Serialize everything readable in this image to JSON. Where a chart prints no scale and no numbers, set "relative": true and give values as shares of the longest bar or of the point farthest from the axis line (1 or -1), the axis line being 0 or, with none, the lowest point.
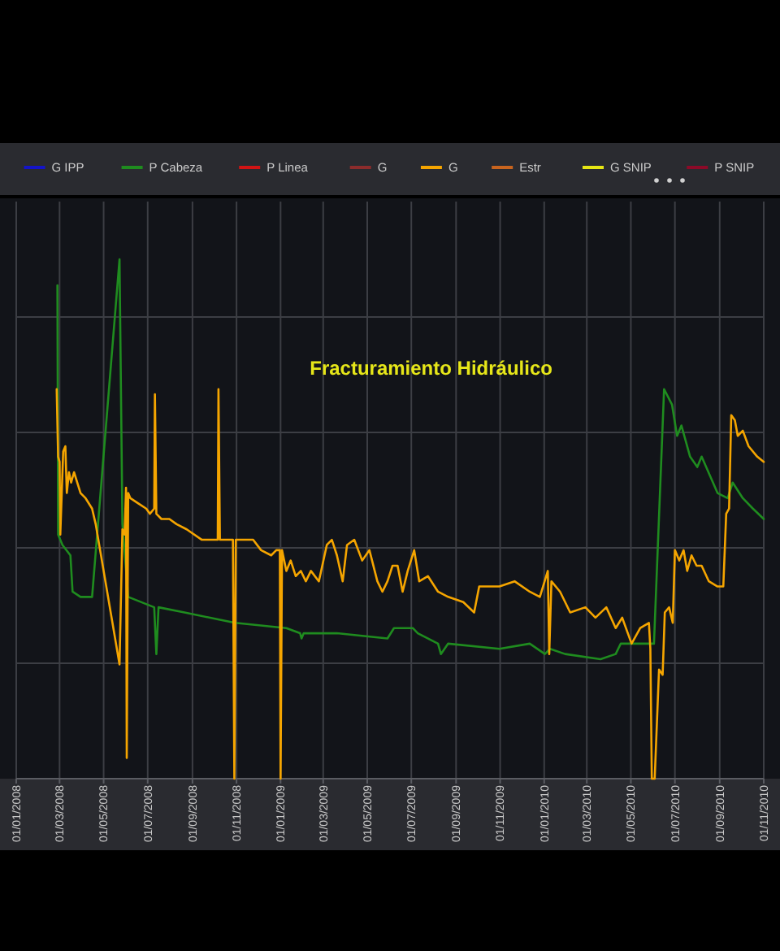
{
  "chart_data": {
    "type": "line",
    "relative": true,
    "grid": true,
    "legend": "top",
    "annotations": [
      "Fracturamiento Hidráulico"
    ],
    "xlim": [
      "2008-01-01",
      "2010-11-01"
    ],
    "xticks": [
      {
        "value": "2008-01-01",
        "label": "01/01/2008"
      },
      {
        "value": "2008-03-01",
        "label": "01/03/2008"
      },
      {
        "value": "2008-05-01",
        "label": "01/05/2008"
      },
      {
        "value": "2008-07-01",
        "label": "01/07/2008"
      },
      {
        "value": "2008-09-01",
        "label": "01/09/2008"
      },
      {
        "value": "2008-11-01",
        "label": "01/11/2008"
      },
      {
        "value": "2009-01-01",
        "label": "01/01/2009"
      },
      {
        "value": "2009-03-01",
        "label": "01/03/2009"
      },
      {
        "value": "2009-05-01",
        "label": "01/05/2009"
      },
      {
        "value": "2009-07-01",
        "label": "01/07/2009"
      },
      {
        "value": "2009-09-01",
        "label": "01/09/2009"
      },
      {
        "value": "2009-11-01",
        "label": "01/11/2009"
      },
      {
        "value": "2010-01-01",
        "label": "01/01/2010"
      },
      {
        "value": "2010-03-01",
        "label": "01/03/2010"
      },
      {
        "value": "2010-05-01",
        "label": "01/05/2010"
      },
      {
        "value": "2010-07-01",
        "label": "01/07/2010"
      },
      {
        "value": "2010-09-01",
        "label": "01/09/2010"
      },
      {
        "value": "2010-11-01",
        "label": "01/11/2010"
      }
    ],
    "series": [
      {
        "name": "G IPP",
        "color": "#1414c8"
      },
      {
        "name": "P Cabeza",
        "color": "#1f8c1f",
        "x": [
          "2008-02-27",
          "2008-02-28",
          "2008-03-05",
          "2008-03-16",
          "2008-03-19",
          "2008-03-30",
          "2008-04-15",
          "2008-05-23",
          "2008-05-27",
          "2008-06-04",
          "2008-07-10",
          "2008-07-13",
          "2008-07-16",
          "2008-08-21",
          "2008-10-30",
          "2009-01-09",
          "2009-01-28",
          "2009-01-30",
          "2009-02-02",
          "2009-03-20",
          "2009-05-29",
          "2009-06-07",
          "2009-06-12",
          "2009-07-03",
          "2009-07-10",
          "2009-08-07",
          "2009-08-11",
          "2009-08-21",
          "2009-10-31",
          "2009-12-12",
          "2010-01-02",
          "2010-01-09",
          "2010-01-30",
          "2010-03-20",
          "2010-04-10",
          "2010-04-17",
          "2010-06-02",
          "2010-06-16",
          "2010-06-27",
          "2010-07-04",
          "2010-07-10",
          "2010-07-22",
          "2010-08-01",
          "2010-08-07",
          "2010-08-29",
          "2010-09-12",
          "2010-09-19",
          "2010-10-03",
          "2010-10-17",
          "2010-11-01"
        ],
        "values": [
          0.95,
          0.47,
          0.45,
          0.43,
          0.36,
          0.35,
          0.35,
          1,
          0.49,
          0.35,
          0.33,
          0.24,
          0.33,
          0.32,
          0.3,
          0.29,
          0.28,
          0.27,
          0.28,
          0.28,
          0.27,
          0.29,
          0.29,
          0.29,
          0.28,
          0.26,
          0.24,
          0.26,
          0.25,
          0.26,
          0.24,
          0.25,
          0.24,
          0.23,
          0.24,
          0.26,
          0.26,
          0.75,
          0.72,
          0.66,
          0.68,
          0.62,
          0.6,
          0.62,
          0.55,
          0.54,
          0.57,
          0.54,
          0.52,
          0.5
        ]
      },
      {
        "name": "P Linea",
        "color": "#d01414"
      },
      {
        "name": "G",
        "color": "#8c2c2c"
      },
      {
        "name": "G",
        "color": "#f5a500",
        "x": [
          "2008-02-26",
          "2008-02-28",
          "2008-03-01",
          "2008-03-02",
          "2008-03-06",
          "2008-03-09",
          "2008-03-11",
          "2008-03-14",
          "2008-03-17",
          "2008-03-21",
          "2008-03-30",
          "2008-04-06",
          "2008-04-15",
          "2008-04-20",
          "2008-05-23",
          "2008-05-27",
          "2008-05-30",
          "2008-06-01",
          "2008-06-02",
          "2008-06-04",
          "2008-06-07",
          "2008-06-18",
          "2008-06-29",
          "2008-07-04",
          "2008-07-10",
          "2008-07-11",
          "2008-07-13",
          "2008-07-20",
          "2008-07-31",
          "2008-08-10",
          "2008-08-24",
          "2008-09-14",
          "2008-10-06",
          "2008-10-07",
          "2008-10-09",
          "2008-10-27",
          "2008-10-29",
          "2008-10-31",
          "2008-11-24",
          "2008-12-05",
          "2008-12-19",
          "2008-12-26",
          "2008-12-31",
          "2009-01-01",
          "2009-01-03",
          "2009-01-09",
          "2009-01-15",
          "2009-01-22",
          "2009-01-29",
          "2009-02-05",
          "2009-02-12",
          "2009-02-23",
          "2009-03-06",
          "2009-03-13",
          "2009-03-20",
          "2009-03-28",
          "2009-04-03",
          "2009-04-13",
          "2009-04-24",
          "2009-05-04",
          "2009-05-15",
          "2009-05-22",
          "2009-05-29",
          "2009-06-05",
          "2009-06-12",
          "2009-06-19",
          "2009-06-26",
          "2009-07-05",
          "2009-07-12",
          "2009-07-24",
          "2009-08-07",
          "2009-08-21",
          "2009-09-11",
          "2009-09-26",
          "2009-10-03",
          "2009-10-31",
          "2009-11-21",
          "2009-12-12",
          "2009-12-26",
          "2010-01-06",
          "2010-01-08",
          "2010-01-11",
          "2010-01-23",
          "2010-02-06",
          "2010-02-27",
          "2010-03-13",
          "2010-03-28",
          "2010-04-10",
          "2010-04-19",
          "2010-05-02",
          "2010-05-14",
          "2010-05-26",
          "2010-05-28",
          "2010-05-30",
          "2010-06-03",
          "2010-06-09",
          "2010-06-14",
          "2010-06-17",
          "2010-06-23",
          "2010-06-28",
          "2010-07-01",
          "2010-07-07",
          "2010-07-13",
          "2010-07-18",
          "2010-07-24",
          "2010-07-31",
          "2010-08-07",
          "2010-08-17",
          "2010-08-29",
          "2010-09-06",
          "2010-09-10",
          "2010-09-14",
          "2010-09-17",
          "2010-09-22",
          "2010-09-26",
          "2010-10-03",
          "2010-10-11",
          "2010-10-23",
          "2010-11-01"
        ],
        "values": [
          0.75,
          0.62,
          0.61,
          0.47,
          0.63,
          0.64,
          0.55,
          0.59,
          0.57,
          0.59,
          0.55,
          0.54,
          0.52,
          0.49,
          0.22,
          0.48,
          0.47,
          0.56,
          0.04,
          0.55,
          0.54,
          0.53,
          0.52,
          0.51,
          0.52,
          0.74,
          0.51,
          0.5,
          0.5,
          0.49,
          0.48,
          0.46,
          0.46,
          0.75,
          0.46,
          0.46,
          0,
          0.46,
          0.46,
          0.44,
          0.43,
          0.44,
          0.44,
          0,
          0.44,
          0.4,
          0.42,
          0.39,
          0.4,
          0.38,
          0.4,
          0.38,
          0.45,
          0.46,
          0.43,
          0.38,
          0.45,
          0.46,
          0.42,
          0.44,
          0.38,
          0.36,
          0.38,
          0.41,
          0.41,
          0.36,
          0.4,
          0.44,
          0.38,
          0.39,
          0.36,
          0.35,
          0.34,
          0.32,
          0.37,
          0.37,
          0.38,
          0.36,
          0.35,
          0.4,
          0.24,
          0.38,
          0.36,
          0.32,
          0.33,
          0.31,
          0.33,
          0.29,
          0.31,
          0.26,
          0.29,
          0.3,
          0.25,
          0,
          0,
          0.21,
          0.2,
          0.32,
          0.33,
          0.3,
          0.44,
          0.42,
          0.44,
          0.4,
          0.43,
          0.41,
          0.41,
          0.38,
          0.37,
          0.37,
          0.51,
          0.52,
          0.7,
          0.69,
          0.66,
          0.67,
          0.64,
          0.62,
          0.61
        ]
      },
      {
        "name": "Estr",
        "color": "#c8641e"
      },
      {
        "name": "G SNIP",
        "color": "#e6e614"
      },
      {
        "name": "P SNIP",
        "color": "#8c0a28"
      }
    ]
  }
}
